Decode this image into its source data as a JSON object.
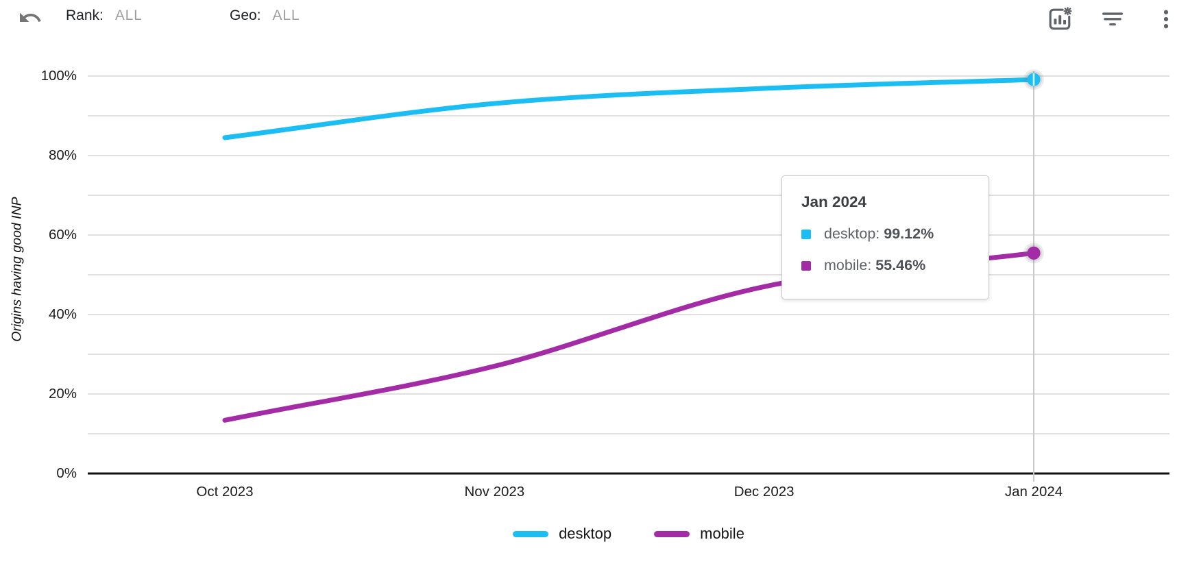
{
  "toolbar": {
    "undo_icon": "undo-icon",
    "rank_label": "Rank:",
    "rank_value": "ALL",
    "geo_label": "Geo:",
    "geo_value": "ALL",
    "right_icons": [
      "chart-settings-icon",
      "filter-icon",
      "more-vert-icon"
    ]
  },
  "colors": {
    "desktop": "#1BBEF2",
    "mobile": "#A42BA6",
    "icon_gray": "#5f6368",
    "muted_value": "#9e9e9e",
    "gridline": "#e0e0e0",
    "axis": "#111111",
    "crosshair": "#c9c9c9"
  },
  "tooltip": {
    "title": "Jan 2024",
    "entries": [
      {
        "series": "desktop",
        "label": "desktop:",
        "value": "99.12%"
      },
      {
        "series": "mobile",
        "label": "mobile:",
        "value": "55.46%"
      }
    ]
  },
  "chart_data": {
    "type": "line",
    "title": "",
    "ylabel": "Origins having good INP",
    "x": [
      "Oct 2023",
      "Nov 2023",
      "Dec 2023",
      "Jan 2024"
    ],
    "series": [
      {
        "name": "desktop",
        "color": "#1BBEF2",
        "values": [
          84.5,
          93.1,
          96.9,
          99.12
        ]
      },
      {
        "name": "mobile",
        "color": "#A42BA6",
        "values": [
          13.4,
          27.0,
          47.0,
          55.46
        ]
      }
    ],
    "ylim": [
      0,
      100
    ],
    "yticks": [
      {
        "label": "100%",
        "value": 100
      },
      {
        "label": "80%",
        "value": 80
      },
      {
        "label": "60%",
        "value": 60
      },
      {
        "label": "40%",
        "value": 40
      },
      {
        "label": "20%",
        "value": 20
      },
      {
        "label": "0%",
        "value": 0
      }
    ],
    "grid_step_pct": 10,
    "grid": "horizontal",
    "legend_position": "bottom",
    "highlighted_point": {
      "x": "Jan 2024",
      "desktop": "99.12%",
      "mobile": "55.46%"
    }
  }
}
